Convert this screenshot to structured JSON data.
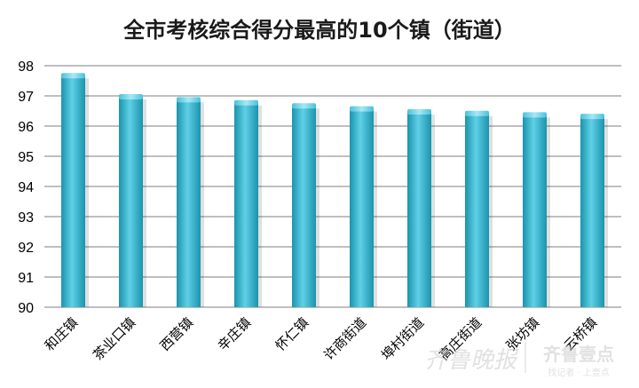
{
  "chart_data": {
    "type": "bar",
    "title": "全市考核综合得分最高的10个镇（街道）",
    "categories": [
      "和庄镇",
      "茶业口镇",
      "西营镇",
      "辛庄镇",
      "怀仁镇",
      "许商街道",
      "埠村街道",
      "高庄街道",
      "张坊镇",
      "云桥镇"
    ],
    "values": [
      97.7,
      97.0,
      96.9,
      96.8,
      96.7,
      96.6,
      96.5,
      96.45,
      96.4,
      96.35
    ],
    "ylim": [
      90,
      98
    ],
    "yticks": [
      "90",
      "91",
      "92",
      "93",
      "94",
      "95",
      "96",
      "97",
      "98"
    ],
    "xlabel": "",
    "ylabel": "",
    "grid": true,
    "legend": "none",
    "colors": {
      "bar": "#2db4cf",
      "bar_light": "#86dbec",
      "bar_dark": "#168ea6",
      "grid": "#7f7f7f"
    }
  },
  "watermark": {
    "main": "齐鲁晚报",
    "brand": "齐鲁壹点",
    "slogan": "找记者 · 上壹点"
  }
}
